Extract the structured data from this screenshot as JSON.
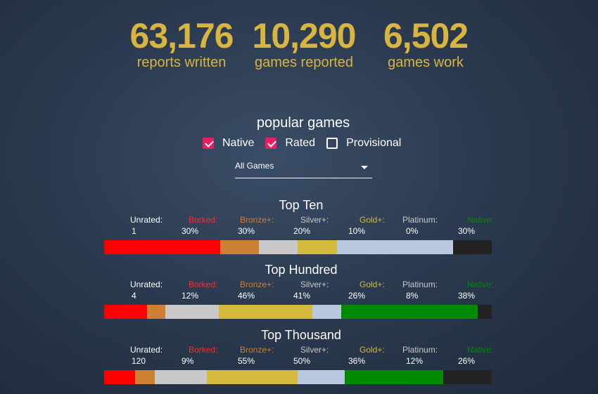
{
  "stats": [
    {
      "value": "63,176",
      "label": "reports written"
    },
    {
      "value": "10,290",
      "label": "games reported"
    },
    {
      "value": "6,502",
      "label": "games work"
    }
  ],
  "popular": {
    "title": "popular games",
    "filters": [
      {
        "label": "Native",
        "checked": true
      },
      {
        "label": "Rated",
        "checked": true
      },
      {
        "label": "Provisional",
        "checked": false
      }
    ],
    "select_value": "All Games"
  },
  "categories": [
    {
      "label": "Unrated:",
      "color": "#ffffff"
    },
    {
      "label": "Borked:",
      "color": "#ff2a2a"
    },
    {
      "label": "Bronze+:",
      "color": "#cd7f32"
    },
    {
      "label": "Silver+:",
      "color": "#c8c8c8"
    },
    {
      "label": "Gold+:",
      "color": "#d4b93c"
    },
    {
      "label": "Platinum:",
      "color": "#c8c8c8"
    },
    {
      "label": "Native:",
      "color": "#008a00"
    }
  ],
  "groups": [
    {
      "title": "Top Ten",
      "values": [
        "1",
        "30%",
        "30%",
        "20%",
        "10%",
        "0%",
        "30%"
      ],
      "fractions": [
        0.3,
        0.1,
        0.1,
        0.1,
        0.3,
        0.0,
        0.1
      ]
    },
    {
      "title": "Top Hundred",
      "values": [
        "4",
        "12%",
        "46%",
        "41%",
        "26%",
        "8%",
        "38%"
      ],
      "fractions": [
        0.12,
        0.05,
        0.15,
        0.26,
        0.08,
        0.38,
        0.04
      ]
    },
    {
      "title": "Top Thousand",
      "values": [
        "120",
        "9%",
        "55%",
        "50%",
        "36%",
        "12%",
        "26%"
      ],
      "fractions": [
        0.08,
        0.05,
        0.135,
        0.235,
        0.12,
        0.255,
        0.125
      ]
    }
  ],
  "bar_colors": [
    "#ff0000",
    "#cd7f32",
    "#c8c8c8",
    "#d4b93c",
    "#b8c8e0",
    "#008a00",
    "#222222"
  ]
}
